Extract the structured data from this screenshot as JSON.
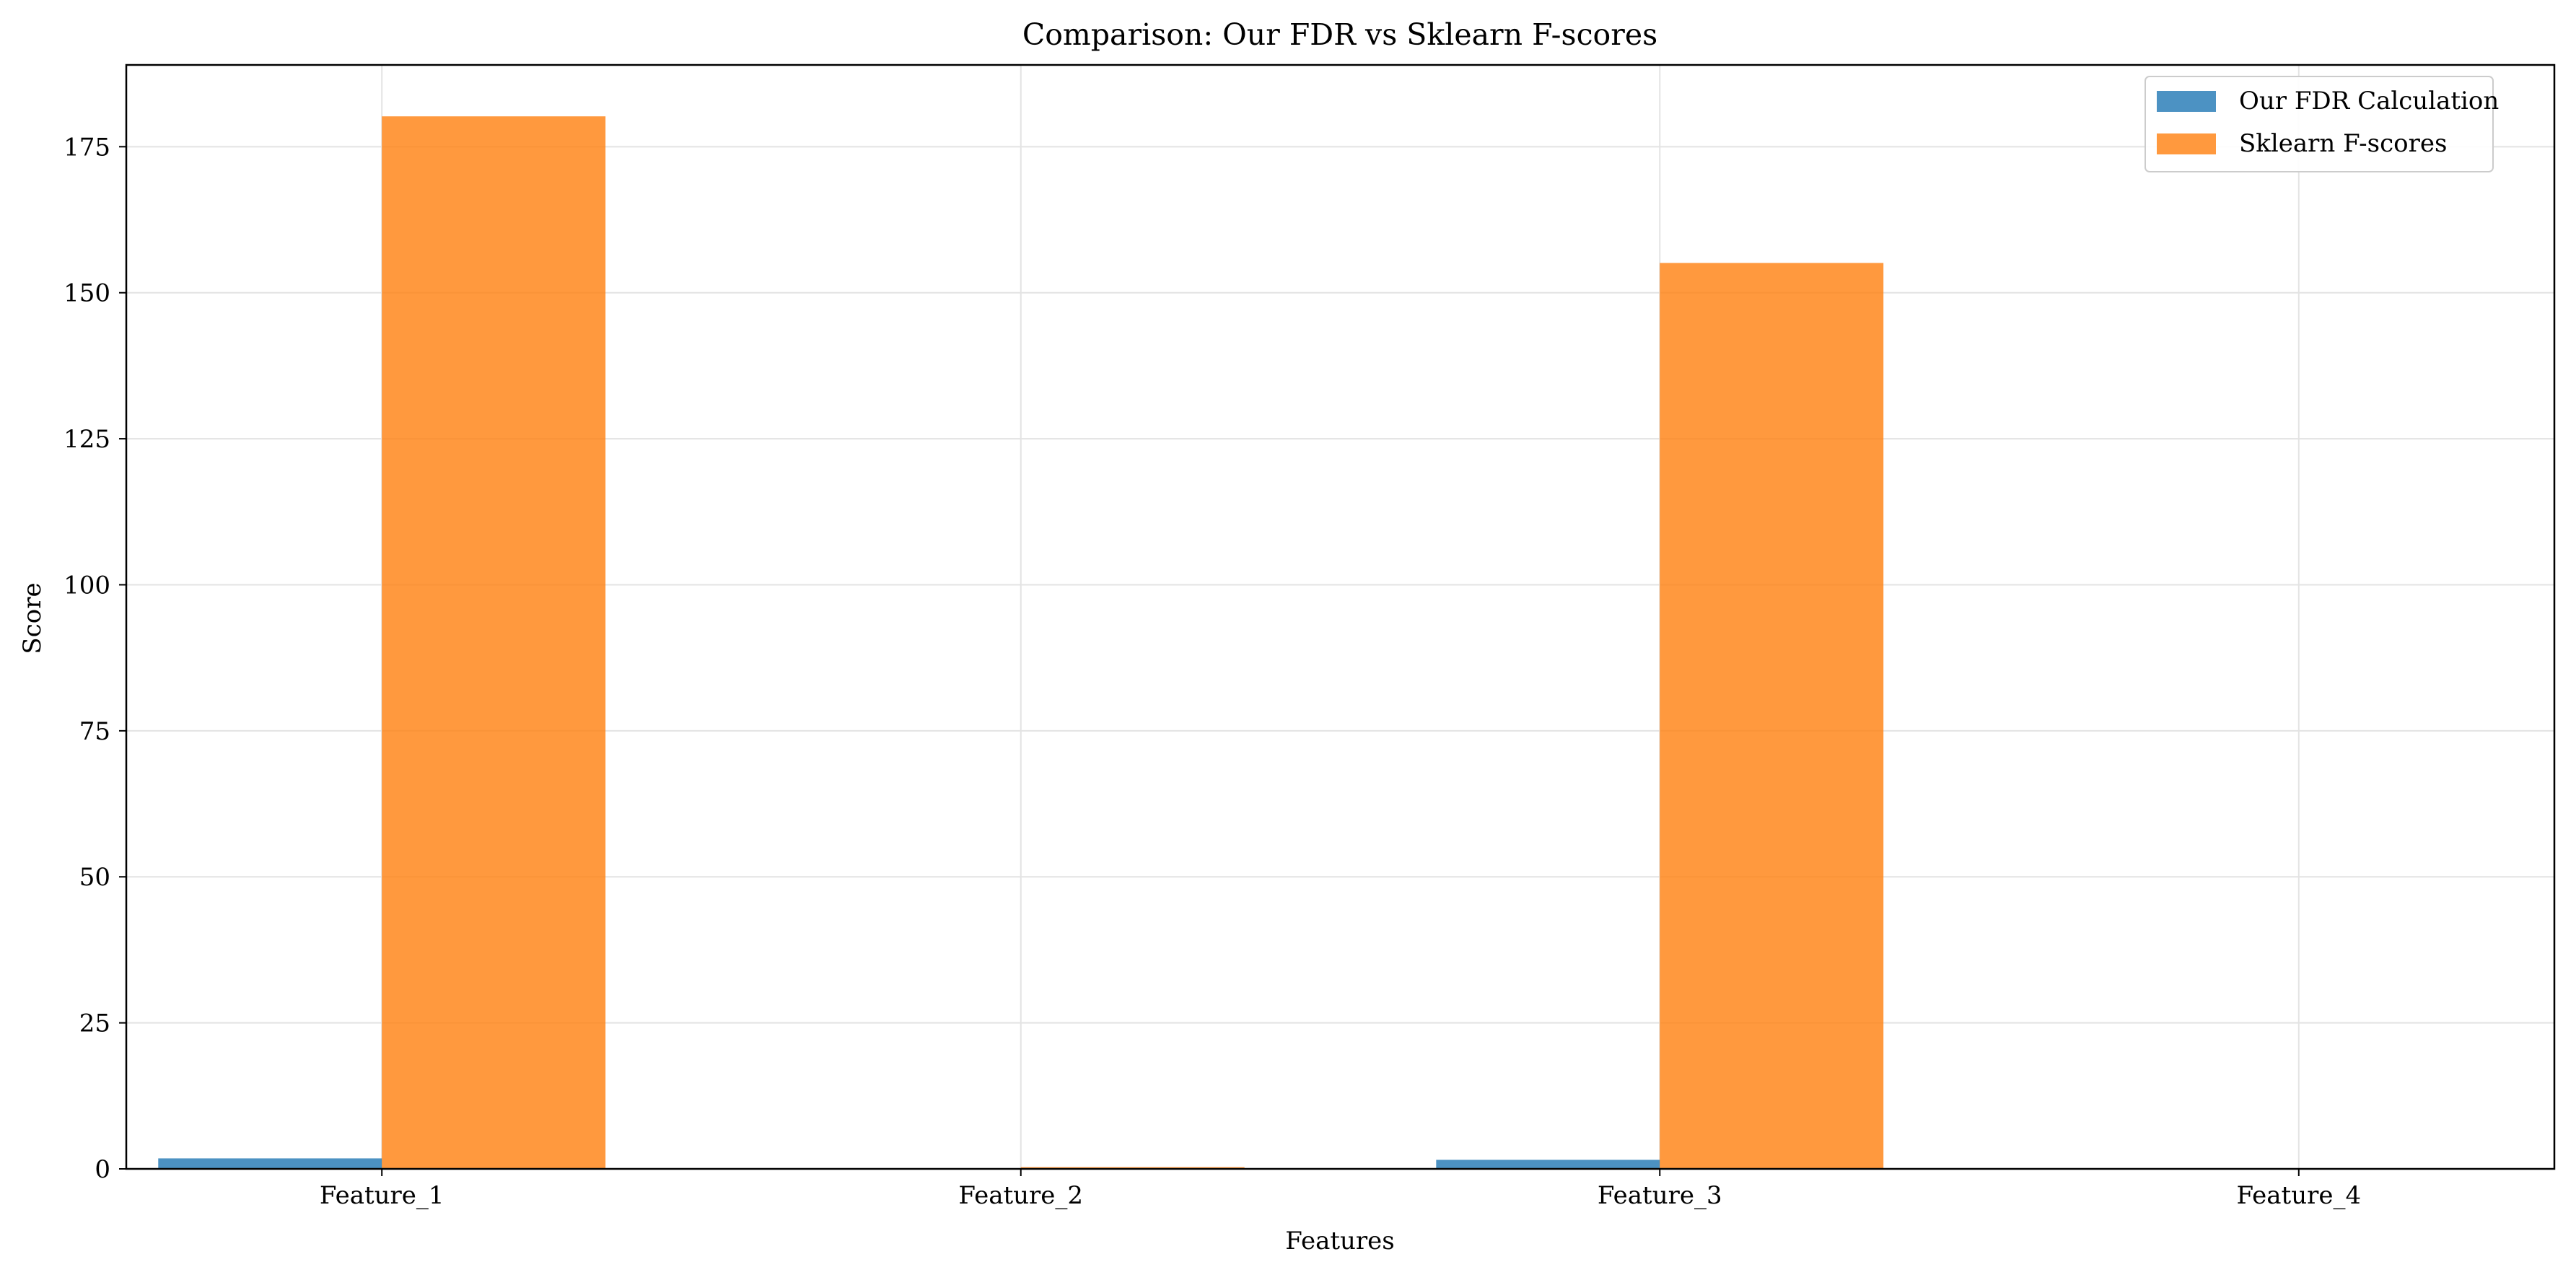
{
  "chart_data": {
    "type": "bar",
    "title": "Comparison: Our FDR vs Sklearn F-scores",
    "xlabel": "Features",
    "ylabel": "Score",
    "categories": [
      "Feature_1",
      "Feature_2",
      "Feature_3",
      "Feature_4"
    ],
    "ylim": [
      0,
      189
    ],
    "yticks": [
      0,
      25,
      50,
      75,
      100,
      125,
      150,
      175
    ],
    "grid": true,
    "legend": "top-right",
    "series": [
      {
        "name": "Our FDR Calculation",
        "color": "#1f77b4",
        "values": [
          1.8,
          0.02,
          1.55,
          0.0
        ]
      },
      {
        "name": "Sklearn F-scores",
        "color": "#ff7f0e",
        "values": [
          180.2,
          0.3,
          155.1,
          0.0
        ]
      }
    ]
  }
}
